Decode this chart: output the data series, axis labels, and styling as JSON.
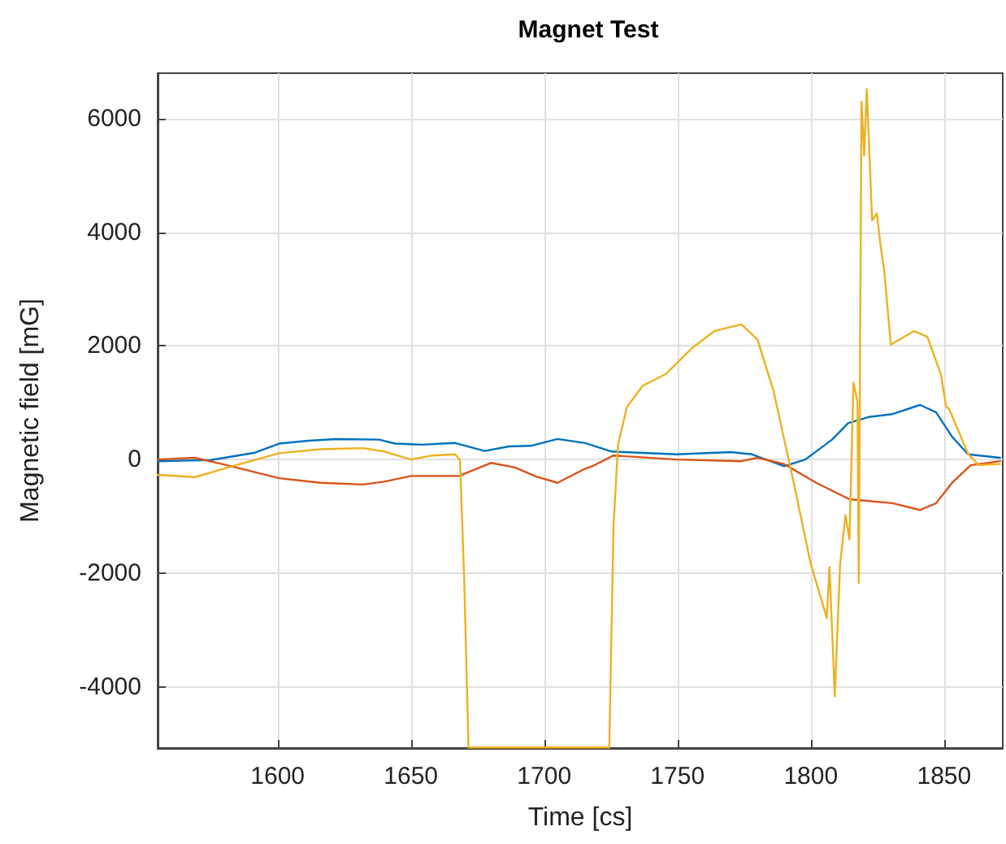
{
  "chart_data": {
    "type": "line",
    "title": "Magnet Test",
    "xlabel": "Time [cs]",
    "ylabel": "Magnetic field [mG]",
    "xlim": [
      1555,
      1872
    ],
    "xticks": [
      1600,
      1650,
      1700,
      1750,
      1800,
      1850
    ],
    "ylim": [
      -5080,
      6800
    ],
    "yticks": [
      -4000,
      -2000,
      0,
      2000,
      4000,
      6000
    ],
    "grid": true,
    "marker": "none",
    "line_style": "solid",
    "series": [
      {
        "color": "#0072bd",
        "x": [
          1555,
          1575,
          1591.5,
          1600.6,
          1611.7,
          1622,
          1638,
          1644,
          1654,
          1666.6,
          1677.7,
          1686.8,
          1695,
          1705,
          1715.3,
          1725.3,
          1749.6,
          1770,
          1778,
          1790,
          1798,
          1808,
          1814,
          1822,
          1830.7,
          1841,
          1847,
          1853,
          1859,
          1871
        ],
        "values": [
          -30,
          -10,
          120,
          280,
          330,
          360,
          350,
          280,
          260,
          290,
          150,
          230,
          240,
          360,
          290,
          140,
          90,
          130,
          90,
          -120,
          0,
          350,
          640,
          750,
          800,
          960,
          830,
          400,
          90,
          30
        ]
      },
      {
        "color": "#d95319",
        "x": [
          1555,
          1569,
          1581,
          1600.6,
          1616,
          1632,
          1640,
          1650,
          1668,
          1680,
          1689,
          1697,
          1705,
          1715,
          1718,
          1726,
          1749.6,
          1774,
          1780,
          1790,
          1802,
          1814.5,
          1830.7,
          1841,
          1847,
          1853,
          1860,
          1871
        ],
        "values": [
          0,
          30,
          -100,
          -330,
          -410,
          -440,
          -390,
          -290,
          -290,
          -60,
          -140,
          -300,
          -410,
          -170,
          -120,
          70,
          0,
          -30,
          30,
          -80,
          -410,
          -700,
          -770,
          -890,
          -770,
          -410,
          -100,
          -30
        ]
      },
      {
        "color": "#edb120",
        "x": [
          1555,
          1569,
          1583,
          1600.6,
          1616,
          1632,
          1640,
          1650,
          1658,
          1666.6,
          1668.4,
          1670,
          1671.6,
          1724.4,
          1726,
          1727.7,
          1731,
          1737,
          1745.5,
          1755.7,
          1763.8,
          1774,
          1780,
          1786,
          1794,
          1800,
          1806,
          1807,
          1809,
          1811,
          1813,
          1814.5,
          1816,
          1817.5,
          1818,
          1819,
          1820,
          1821,
          1823,
          1824.8,
          1826,
          1827.6,
          1830,
          1838.6,
          1843.7,
          1848.8,
          1850.8,
          1851.8,
          1859,
          1863,
          1871
        ],
        "values": [
          -270,
          -310,
          -120,
          110,
          180,
          200,
          140,
          0,
          70,
          90,
          -10,
          -2120,
          -5070,
          -5070,
          -1170,
          260,
          920,
          1300,
          1500,
          1970,
          2260,
          2380,
          2110,
          1210,
          -500,
          -1840,
          -2790,
          -1890,
          -4170,
          -1840,
          -980,
          -1410,
          1350,
          1020,
          -2170,
          6300,
          5350,
          6520,
          4210,
          4330,
          3830,
          3300,
          2020,
          2260,
          2160,
          1500,
          920,
          900,
          100,
          -100,
          -80
        ]
      }
    ]
  }
}
